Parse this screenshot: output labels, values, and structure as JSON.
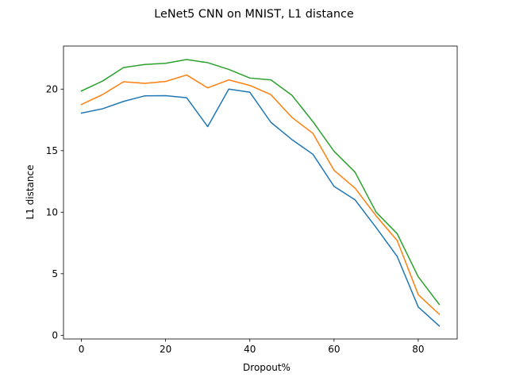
{
  "chart_data": {
    "type": "line",
    "title": "LeNet5 CNN on MNIST, L1 distance",
    "xlabel": "Dropout%",
    "ylabel": "L1 distance",
    "xlim": [
      -4.25,
      89.25
    ],
    "ylim": [
      -0.3,
      23.5
    ],
    "xticks": [
      0,
      20,
      40,
      60,
      80
    ],
    "yticks": [
      0,
      5,
      10,
      15,
      20
    ],
    "grid": false,
    "x": [
      0,
      5,
      10,
      15,
      20,
      25,
      30,
      35,
      40,
      45,
      50,
      55,
      60,
      65,
      70,
      75,
      80,
      85
    ],
    "series": [
      {
        "color": "#1f77b4",
        "values": [
          18.05,
          18.4,
          19.0,
          19.45,
          19.47,
          19.3,
          16.95,
          20.0,
          19.75,
          17.3,
          15.9,
          14.7,
          12.1,
          11.0,
          8.75,
          6.4,
          2.3,
          0.75
        ]
      },
      {
        "color": "#ff7f0e",
        "values": [
          18.75,
          19.55,
          20.6,
          20.47,
          20.62,
          21.15,
          20.1,
          20.75,
          20.3,
          19.55,
          17.7,
          16.4,
          13.4,
          11.95,
          9.7,
          7.7,
          3.3,
          1.7
        ]
      },
      {
        "color": "#2ca02c",
        "values": [
          19.85,
          20.65,
          21.75,
          22.0,
          22.1,
          22.4,
          22.15,
          21.6,
          20.9,
          20.75,
          19.5,
          17.35,
          14.95,
          13.25,
          10.0,
          8.25,
          4.75,
          2.5
        ]
      }
    ]
  }
}
